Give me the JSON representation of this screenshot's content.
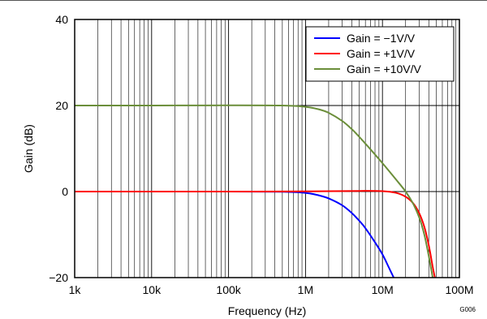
{
  "figure_id": "G006",
  "chart_data": {
    "type": "line",
    "xlabel": "Frequency (Hz)",
    "ylabel": "Gain (dB)",
    "xscale": "log",
    "xlim": [
      1000,
      100000000
    ],
    "ylim": [
      -20,
      40
    ],
    "x_ticks": [
      {
        "value": 1000,
        "label": "1k"
      },
      {
        "value": 10000,
        "label": "10k"
      },
      {
        "value": 100000,
        "label": "100k"
      },
      {
        "value": 1000000,
        "label": "1M"
      },
      {
        "value": 10000000,
        "label": "10M"
      },
      {
        "value": 100000000,
        "label": "100M"
      }
    ],
    "y_ticks": [
      {
        "value": -20,
        "label": "−20"
      },
      {
        "value": 0,
        "label": "0"
      },
      {
        "value": 20,
        "label": "20"
      },
      {
        "value": 40,
        "label": "40"
      }
    ],
    "grid": true,
    "legend_position": "top-right",
    "series": [
      {
        "name": "Gain = −1V/V",
        "color": "#0000ff",
        "x": [
          1000,
          10000,
          100000,
          500000,
          1000000,
          1500000,
          2000000,
          3000000,
          4000000,
          5000000,
          6000000,
          8000000,
          10000000,
          12000000,
          14000000
        ],
        "y": [
          0,
          0,
          0,
          -0.05,
          -0.3,
          -0.9,
          -1.6,
          -3.2,
          -5.0,
          -6.8,
          -8.5,
          -11.8,
          -14.6,
          -17.5,
          -20
        ]
      },
      {
        "name": "Gain = +1V/V",
        "color": "#ff0000",
        "x": [
          1000,
          10000,
          100000,
          1000000,
          5000000,
          10000000,
          15000000,
          20000000,
          25000000,
          30000000,
          35000000,
          40000000,
          45000000,
          48000000
        ],
        "y": [
          0,
          0,
          0,
          0.05,
          0.15,
          0.1,
          -0.3,
          -1.2,
          -2.7,
          -5.0,
          -8.2,
          -12.5,
          -17.5,
          -20
        ]
      },
      {
        "name": "Gain = +10V/V",
        "color": "#6b8e3a",
        "x": [
          1000,
          10000,
          100000,
          500000,
          1000000,
          1500000,
          2000000,
          3000000,
          4000000,
          5000000,
          7000000,
          10000000,
          15000000,
          20000000,
          25000000,
          30000000,
          35000000,
          40000000,
          45000000
        ],
        "y": [
          20,
          20,
          20.05,
          20,
          19.7,
          19.1,
          18.3,
          16.4,
          14.5,
          12.7,
          9.8,
          6.6,
          2.8,
          0,
          -2.8,
          -6.0,
          -10.0,
          -15.0,
          -20
        ]
      }
    ]
  }
}
